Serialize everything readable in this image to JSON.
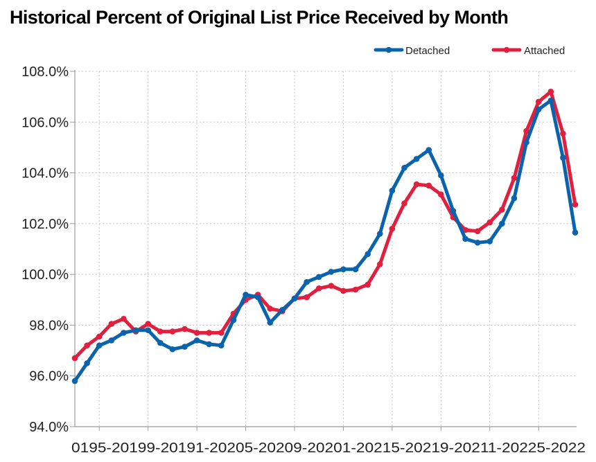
{
  "chart_data": {
    "type": "line",
    "title": "Historical Percent of Original List Price Received by Month",
    "xlabel": "",
    "ylabel": "",
    "ylim": [
      94.0,
      108.0
    ],
    "y_ticks": [
      "94.0%",
      "96.0%",
      "98.0%",
      "100.0%",
      "102.0%",
      "104.0%",
      "106.0%",
      "108.0%"
    ],
    "x_tick_text": "0195-20199-20191-20205-20209-20201-20215-20219-20211-20225-2022",
    "grid": true,
    "legend_position": "top-right",
    "series": [
      {
        "name": "Detached",
        "color": "#0a63ad",
        "values": [
          95.8,
          96.5,
          97.2,
          97.4,
          97.7,
          97.8,
          97.8,
          97.3,
          97.05,
          97.15,
          97.4,
          97.25,
          97.2,
          98.2,
          99.2,
          99.1,
          98.1,
          98.6,
          99.05,
          99.7,
          99.9,
          100.1,
          100.2,
          100.2,
          100.8,
          101.6,
          103.3,
          104.2,
          104.55,
          104.9,
          103.9,
          102.5,
          101.4,
          101.25,
          101.3,
          102.0,
          103.0,
          105.2,
          106.5,
          106.85,
          104.6,
          101.65
        ]
      },
      {
        "name": "Attached",
        "color": "#e0203e",
        "values": [
          96.7,
          97.2,
          97.55,
          98.05,
          98.25,
          97.75,
          98.05,
          97.75,
          97.75,
          97.85,
          97.7,
          97.7,
          97.7,
          98.45,
          99.0,
          99.2,
          98.65,
          98.55,
          99.05,
          99.1,
          99.45,
          99.55,
          99.35,
          99.4,
          99.6,
          100.4,
          101.8,
          102.8,
          103.55,
          103.5,
          103.15,
          102.25,
          101.75,
          101.7,
          102.05,
          102.55,
          103.8,
          105.65,
          106.8,
          107.2,
          105.55,
          102.75
        ]
      }
    ]
  }
}
